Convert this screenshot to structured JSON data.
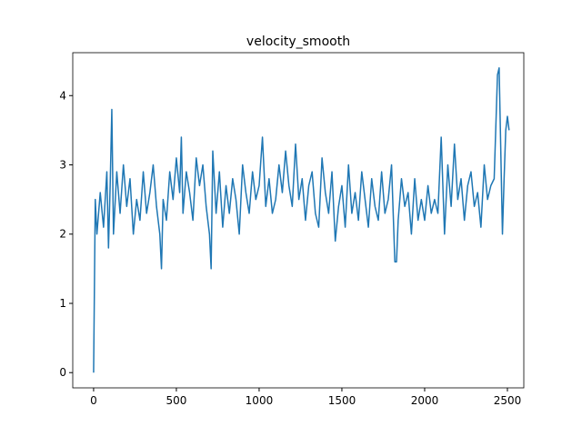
{
  "chart_data": {
    "type": "line",
    "title": "velocity_smooth",
    "x": [
      0,
      10,
      20,
      40,
      60,
      80,
      90,
      100,
      110,
      120,
      140,
      160,
      180,
      200,
      220,
      240,
      260,
      280,
      300,
      320,
      340,
      360,
      380,
      400,
      410,
      420,
      440,
      460,
      480,
      500,
      520,
      530,
      540,
      560,
      580,
      600,
      620,
      640,
      660,
      680,
      700,
      710,
      720,
      740,
      760,
      780,
      800,
      820,
      840,
      860,
      880,
      900,
      920,
      940,
      960,
      980,
      1000,
      1020,
      1040,
      1060,
      1080,
      1100,
      1120,
      1140,
      1160,
      1180,
      1200,
      1220,
      1240,
      1260,
      1280,
      1300,
      1320,
      1340,
      1360,
      1380,
      1400,
      1420,
      1440,
      1460,
      1480,
      1500,
      1520,
      1540,
      1560,
      1580,
      1600,
      1620,
      1640,
      1660,
      1680,
      1700,
      1720,
      1740,
      1760,
      1780,
      1800,
      1820,
      1830,
      1840,
      1860,
      1880,
      1900,
      1920,
      1940,
      1960,
      1980,
      2000,
      2020,
      2040,
      2060,
      2080,
      2100,
      2120,
      2140,
      2160,
      2180,
      2200,
      2220,
      2240,
      2260,
      2280,
      2300,
      2320,
      2340,
      2360,
      2380,
      2400,
      2420,
      2440,
      2450,
      2460,
      2470,
      2480,
      2490,
      2500,
      2510
    ],
    "series": [
      {
        "name": "velocity_smooth",
        "color": "#1f77b4",
        "values": [
          0,
          2.5,
          2.0,
          2.6,
          2.1,
          2.9,
          1.8,
          2.7,
          3.8,
          2.0,
          2.9,
          2.3,
          3.0,
          2.4,
          2.8,
          2.0,
          2.5,
          2.2,
          2.9,
          2.3,
          2.6,
          3.0,
          2.4,
          2.0,
          1.5,
          2.5,
          2.2,
          2.9,
          2.5,
          3.1,
          2.6,
          3.4,
          2.3,
          2.9,
          2.6,
          2.2,
          3.1,
          2.7,
          3.0,
          2.4,
          2.0,
          1.5,
          3.2,
          2.3,
          2.9,
          2.1,
          2.7,
          2.3,
          2.8,
          2.5,
          2.0,
          3.0,
          2.6,
          2.3,
          2.9,
          2.5,
          2.7,
          3.4,
          2.4,
          2.8,
          2.3,
          2.5,
          3.0,
          2.6,
          3.2,
          2.7,
          2.4,
          3.3,
          2.5,
          2.8,
          2.2,
          2.7,
          2.9,
          2.3,
          2.1,
          3.1,
          2.6,
          2.3,
          2.9,
          1.9,
          2.4,
          2.7,
          2.1,
          3.0,
          2.3,
          2.6,
          2.2,
          2.9,
          2.5,
          2.1,
          2.8,
          2.4,
          2.2,
          2.9,
          2.3,
          2.5,
          3.0,
          1.6,
          1.6,
          2.2,
          2.8,
          2.4,
          2.6,
          2.0,
          2.8,
          2.2,
          2.5,
          2.2,
          2.7,
          2.3,
          2.5,
          2.3,
          3.4,
          2.0,
          3.0,
          2.4,
          3.3,
          2.5,
          2.8,
          2.2,
          2.7,
          2.9,
          2.4,
          2.6,
          2.1,
          3.0,
          2.5,
          2.7,
          2.8,
          4.3,
          4.4,
          3.2,
          2.0,
          2.8,
          3.5,
          3.7,
          3.5
        ]
      }
    ],
    "xlim": [
      -126,
      2599
    ],
    "ylim": [
      -0.22,
      4.62
    ],
    "xticks": [
      0,
      500,
      1000,
      1500,
      2000,
      2500
    ],
    "yticks": [
      0,
      1,
      2,
      3,
      4
    ]
  }
}
